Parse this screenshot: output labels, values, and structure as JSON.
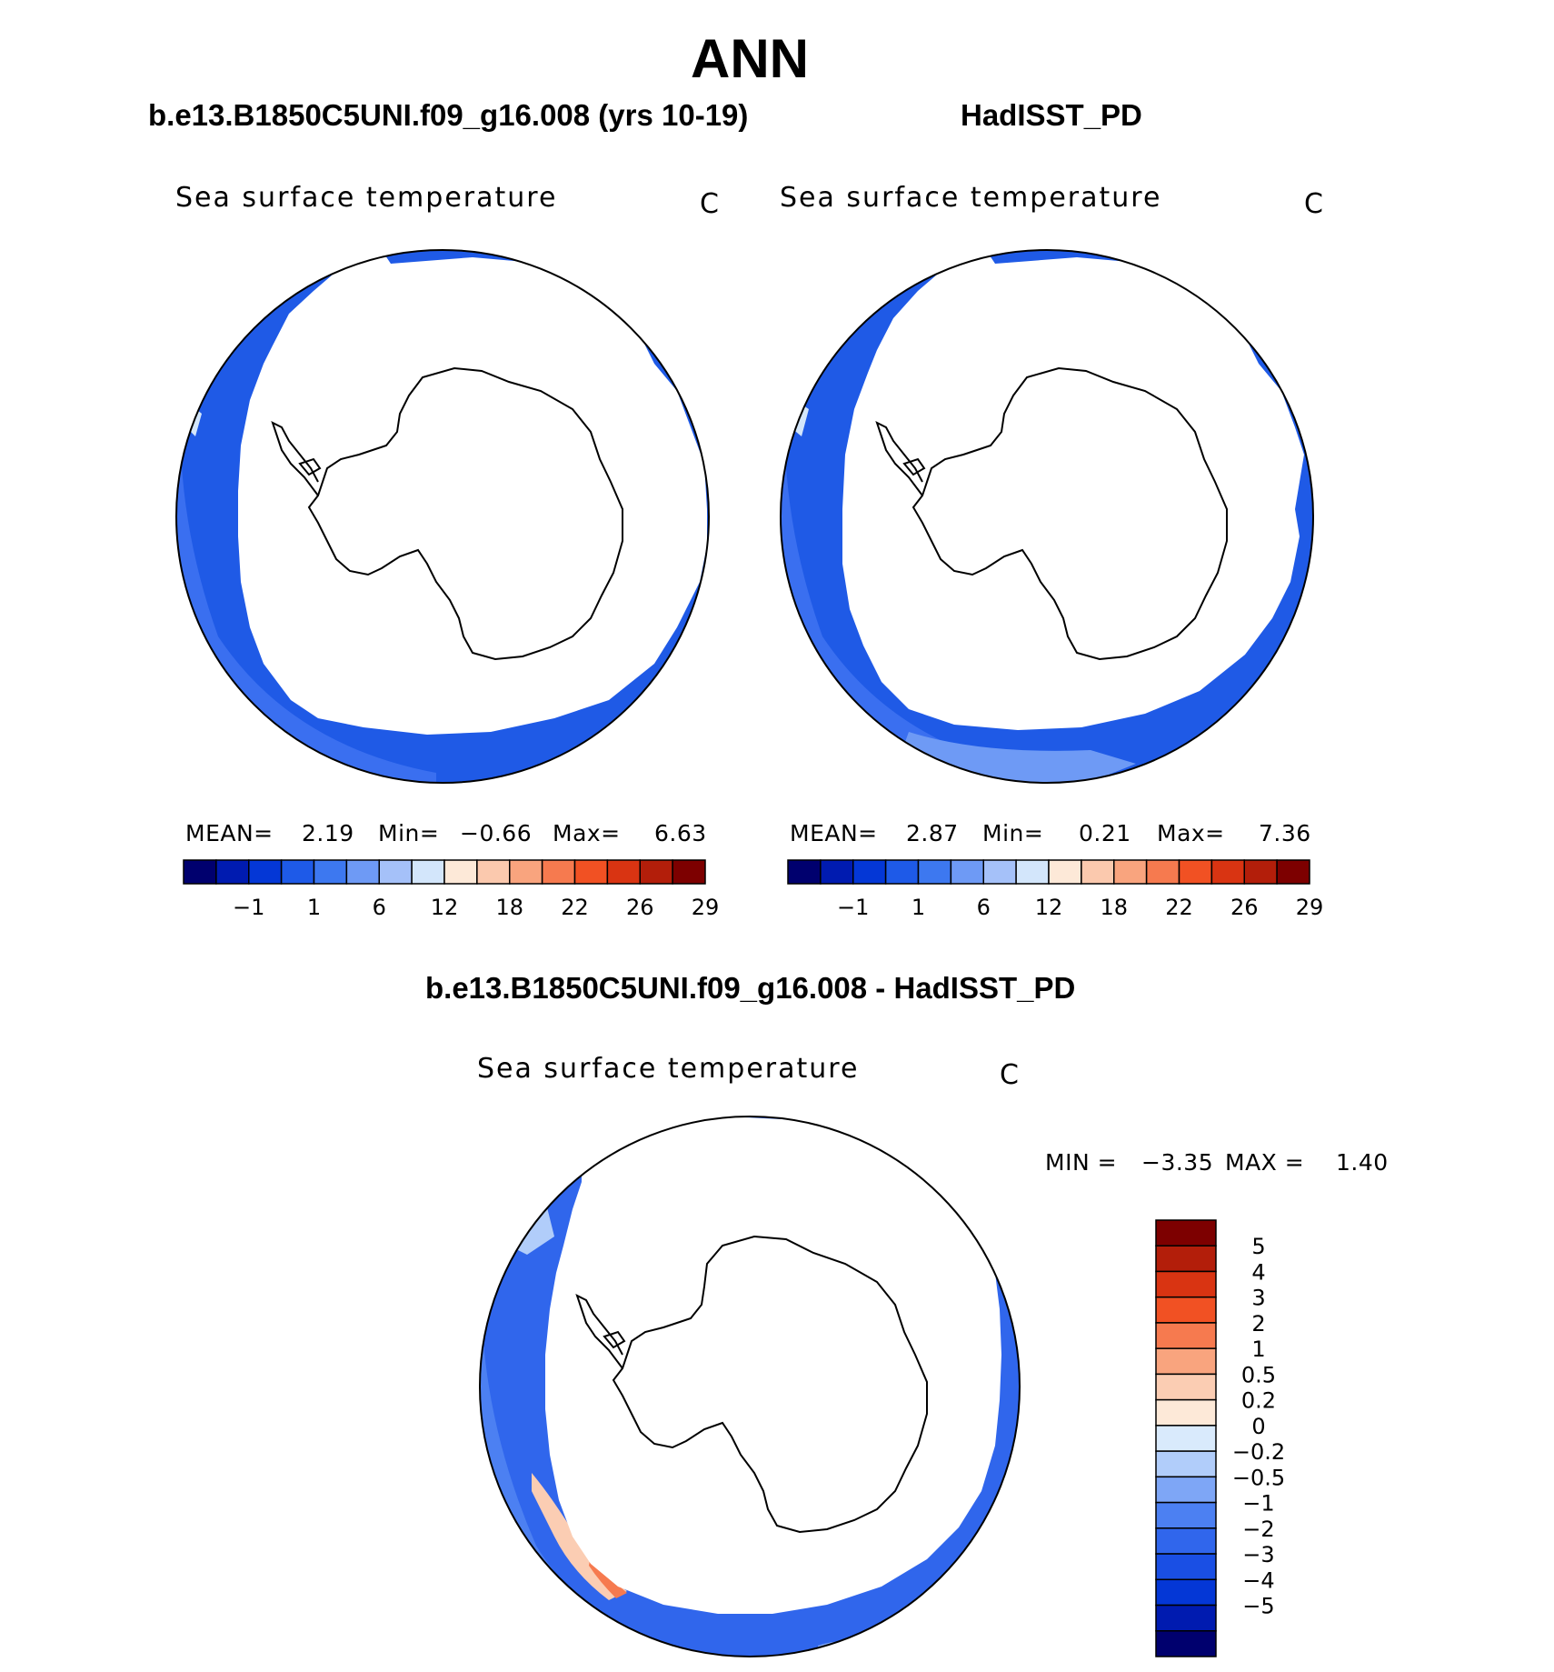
{
  "title": "ANN",
  "colors": {
    "abs_levels": [
      "#00006e",
      "#001bb0",
      "#0437d6",
      "#1e5ae8",
      "#3d78f0",
      "#6e9af5",
      "#a5c1f9",
      "#d3e6fb",
      "#fde9d8",
      "#fbc9ae",
      "#f9a47e",
      "#f67a4f",
      "#f15123",
      "#d93412",
      "#b31e0a",
      "#7d0000"
    ],
    "diff_levels": [
      "#00006e",
      "#001bb0",
      "#0437d6",
      "#1a4fe4",
      "#3066ec",
      "#4c80f2",
      "#7ea6f6",
      "#b1cdfa",
      "#d9eafc",
      "#fde9d8",
      "#fbcdb3",
      "#f9a47e",
      "#f67a4f",
      "#f15123",
      "#d93412",
      "#b31e0a",
      "#7d0000"
    ],
    "ocean_cold": "#1f5ae6",
    "ocean_mid": "#3a6ff0"
  },
  "panels": [
    {
      "name": "model",
      "case_label": "b.e13.B1850C5UNI.f09_g16.008 (yrs 10-19)",
      "field": "Sea surface temperature",
      "unit": "C",
      "stats": {
        "mean_label": "MEAN=",
        "mean": "2.19",
        "min_label": "Min=",
        "min": "−0.66",
        "max_label": "Max=",
        "max": "6.63"
      },
      "colorbar_ticks": [
        "−1",
        "1",
        "6",
        "12",
        "18",
        "22",
        "26",
        "29"
      ]
    },
    {
      "name": "obs",
      "case_label": "HadISST_PD",
      "field": "Sea surface temperature",
      "unit": "C",
      "stats": {
        "mean_label": "MEAN=",
        "mean": "2.87",
        "min_label": "Min=",
        "min": "0.21",
        "max_label": "Max=",
        "max": "7.36"
      },
      "colorbar_ticks": [
        "−1",
        "1",
        "6",
        "12",
        "18",
        "22",
        "26",
        "29"
      ]
    }
  ],
  "difference": {
    "case_label": "b.e13.B1850C5UNI.f09_g16.008 - HadISST_PD",
    "field": "Sea surface temperature",
    "unit": "C",
    "min_label": "MIN =",
    "min": "−3.35",
    "max_label": "MAX =",
    "max": "1.40",
    "colorbar_ticks": [
      "5",
      "4",
      "3",
      "2",
      "1",
      "0.5",
      "0.2",
      "0",
      "−0.2",
      "−0.5",
      "−1",
      "−2",
      "−3",
      "−4",
      "−5"
    ]
  }
}
